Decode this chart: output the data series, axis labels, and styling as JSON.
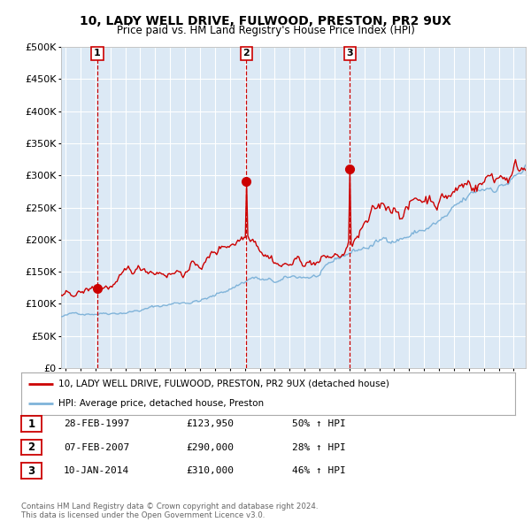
{
  "title": "10, LADY WELL DRIVE, FULWOOD, PRESTON, PR2 9UX",
  "subtitle": "Price paid vs. HM Land Registry's House Price Index (HPI)",
  "property_label": "10, LADY WELL DRIVE, FULWOOD, PRESTON, PR2 9UX (detached house)",
  "hpi_label": "HPI: Average price, detached house, Preston",
  "transactions": [
    {
      "num": 1,
      "date": "28-FEB-1997",
      "price": 123950,
      "pct": "50%",
      "dir": "↑"
    },
    {
      "num": 2,
      "date": "07-FEB-2007",
      "price": 290000,
      "pct": "28%",
      "dir": "↑"
    },
    {
      "num": 3,
      "date": "10-JAN-2014",
      "price": 310000,
      "pct": "46%",
      "dir": "↑"
    }
  ],
  "transaction_dates_decimal": [
    1997.12,
    2007.09,
    2014.03
  ],
  "transaction_prices": [
    123950,
    290000,
    310000
  ],
  "ylim": [
    0,
    500000
  ],
  "yticks": [
    0,
    50000,
    100000,
    150000,
    200000,
    250000,
    300000,
    350000,
    400000,
    450000,
    500000
  ],
  "background_color": "#dce9f5",
  "line_color_property": "#cc0000",
  "line_color_hpi": "#7fb3d9",
  "marker_color": "#cc0000",
  "vline_color": "#cc0000",
  "grid_color": "#ffffff",
  "footer_text": "Contains HM Land Registry data © Crown copyright and database right 2024.\nThis data is licensed under the Open Government Licence v3.0.",
  "xstart": 1994.7,
  "xend": 2025.8
}
